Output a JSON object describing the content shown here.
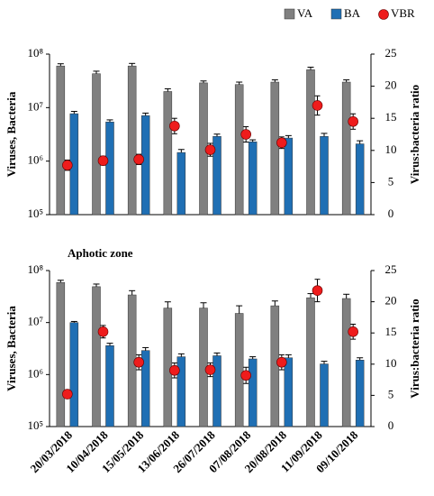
{
  "chart_data": [
    {
      "type": "bar",
      "y_label": "Viruses, Bacteria",
      "y2_label": "Virus:bacteria ratio",
      "log_y": true,
      "ylim": [
        100000,
        100000000
      ],
      "yticks": [
        {
          "value": 100000,
          "label": "10⁵"
        },
        {
          "value": 1000000,
          "label": "10⁶"
        },
        {
          "value": 10000000,
          "label": "10⁷"
        },
        {
          "value": 100000000,
          "label": "10⁸"
        }
      ],
      "y2lim": [
        0,
        25
      ],
      "y2ticks": [
        0,
        5,
        10,
        15,
        20,
        25
      ],
      "legend": "top-right",
      "series": [
        {
          "name": "VA",
          "color": "#808080",
          "values": [
            60000000,
            43000000,
            60000000,
            20000000,
            29000000,
            27000000,
            30000000,
            51000000,
            30000000
          ],
          "errors": [
            6000000,
            5000000,
            7000000,
            2500000,
            2500000,
            3000000,
            3000000,
            6000000,
            3000000
          ]
        },
        {
          "name": "BA",
          "color": "#1f6fb4",
          "values": [
            7700000,
            5400000,
            7100000,
            1450000,
            2900000,
            2300000,
            2700000,
            2900000,
            2100000
          ],
          "errors": [
            800000,
            500000,
            800000,
            200000,
            300000,
            200000,
            300000,
            400000,
            300000
          ]
        },
        {
          "name": "VBR",
          "color": "#ee1c1c",
          "axis": "y2",
          "values": [
            7.7,
            8.4,
            8.6,
            13.8,
            10.1,
            12.5,
            11.2,
            17,
            14.5
          ],
          "errors": [
            0.8,
            0.7,
            0.8,
            1.2,
            1,
            1.2,
            0.9,
            1.5,
            1.2
          ]
        }
      ]
    },
    {
      "type": "bar",
      "title": "Aphotic zone",
      "y_label": "Viruses, Bacteria",
      "y2_label": "Virus:bacteria ratio",
      "log_y": true,
      "categories": [
        "20/03/2018",
        "10/04/2018",
        "15/05/2018",
        "13/06/2018",
        "26/07/2018",
        "07/08/2018",
        "20/08/2018",
        "11/09/2018",
        "09/10/2018"
      ],
      "ylim": [
        100000,
        100000000
      ],
      "yticks": [
        {
          "value": 100000,
          "label": "10⁵"
        },
        {
          "value": 1000000,
          "label": "10⁶"
        },
        {
          "value": 10000000,
          "label": "10⁷"
        },
        {
          "value": 100000000,
          "label": "10⁸"
        }
      ],
      "y2lim": [
        0,
        25
      ],
      "y2ticks": [
        0,
        5,
        10,
        15,
        20,
        25
      ],
      "series": [
        {
          "color": "#808080",
          "values": [
            59000000,
            49000000,
            34000000,
            19000000,
            19000000,
            15000000,
            21000000,
            30000000,
            29000000
          ],
          "errors": [
            6000000,
            6000000,
            7000000,
            6000000,
            5000000,
            6000000,
            5000000,
            6000000,
            6000000
          ]
        },
        {
          "color": "#1f6fb4",
          "values": [
            10000000,
            3600000,
            2900000,
            2200000,
            2300000,
            2000000,
            2100000,
            1600000,
            1900000
          ],
          "errors": [
            500000,
            400000,
            400000,
            300000,
            300000,
            200000,
            300000,
            200000,
            200000
          ]
        },
        {
          "color": "#ee1c1c",
          "axis": "y2",
          "values": [
            5.2,
            15.2,
            10.3,
            9,
            9.1,
            8.2,
            10.3,
            21.8,
            15.2
          ],
          "errors": [
            0.6,
            1,
            1.2,
            1.2,
            1.1,
            1.3,
            1.2,
            1.8,
            1.2
          ]
        }
      ]
    }
  ]
}
